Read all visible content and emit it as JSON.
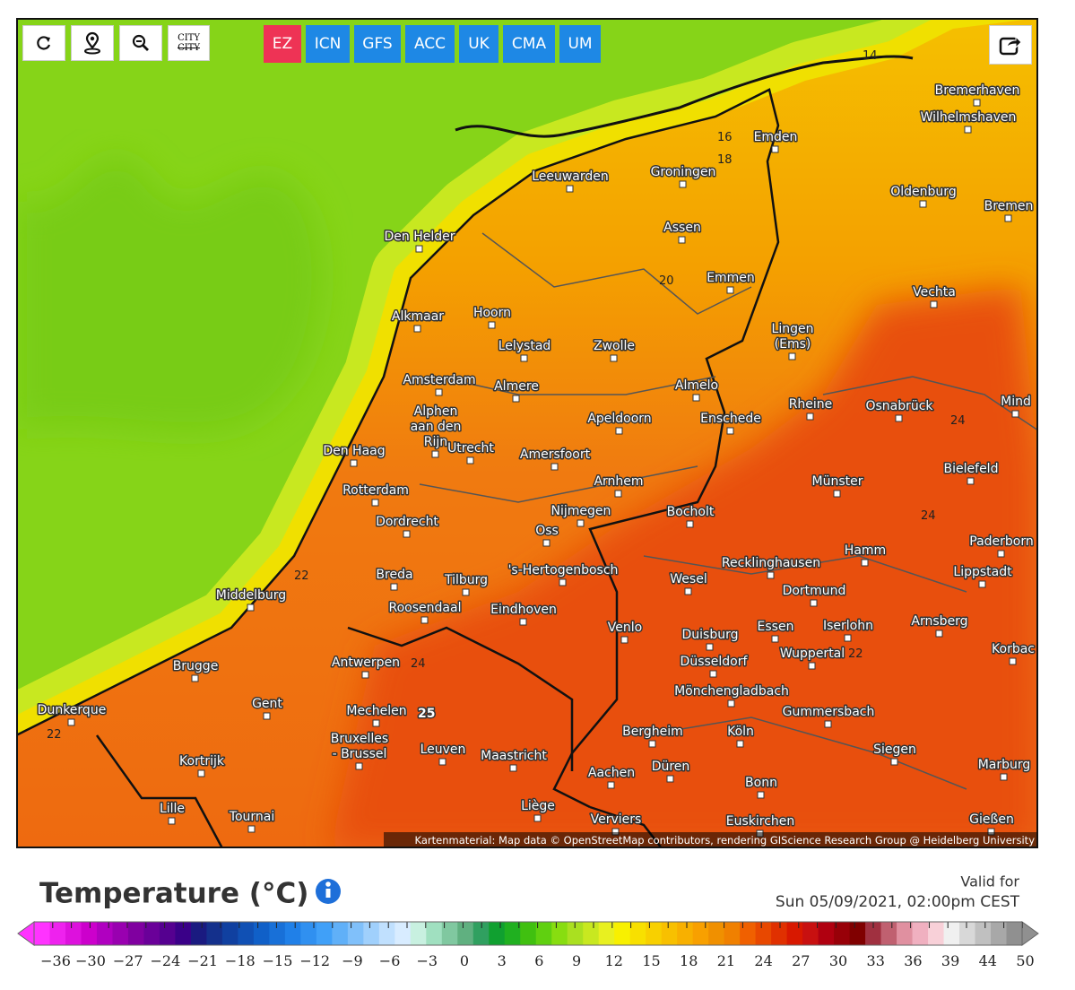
{
  "toolbar": {
    "city_button": [
      "CITY",
      "CITY"
    ]
  },
  "models": [
    "EZ",
    "ICN",
    "GFS",
    "ACC",
    "UK",
    "CMA",
    "UM"
  ],
  "map": {
    "cities": [
      "Bremerhaven",
      "Wilhelmshaven",
      "Emden",
      "Groningen",
      "Leeuwarden",
      "Oldenburg",
      "Bremen",
      "Assen",
      "Den Helder",
      "Emmen",
      "Vechta",
      "Alkmaar",
      "Hoorn",
      [
        "Lingen",
        "(Ems)"
      ],
      "Lelystad",
      "Zwolle",
      "Amsterdam",
      "Almere",
      "Almelo",
      "Rheine",
      "Osnabrück",
      "Mind",
      [
        "Alphen",
        "aan den",
        "Rijn"
      ],
      "Apeldoorn",
      "Enschede",
      "Den Haag",
      "Utrecht",
      "Amersfoort",
      "Bielefeld",
      "Arnhem",
      "Münster",
      "Rotterdam",
      "Nijmegen",
      "Bocholt",
      "Dordrecht",
      "Oss",
      "Paderborn",
      "Hamm",
      "'s-Hertogenbosch",
      "Recklinghausen",
      "Breda",
      "Tilburg",
      "Wesel",
      "Lippstadt",
      "Dortmund",
      "Middelburg",
      "Roosendaal",
      "Eindhoven",
      "Arnsberg",
      "Essen",
      "Iserlohn",
      "Venlo",
      "Duisburg",
      "Wuppertal",
      "Korbac",
      "Brugge",
      "Antwerpen",
      "Düsseldorf",
      "Mönchengladbach",
      "Gummersbach",
      "Dunkerque",
      "Gent",
      "Mechelen",
      "Bergheim",
      "Köln",
      "Siegen",
      [
        "Bruxelles",
        "- Brussel"
      ],
      "Leuven",
      "Maastricht",
      "Kortrijk",
      "Marburg",
      "Düren",
      "Aachen",
      "Bonn",
      "Liège",
      "Lille",
      "Tournai",
      "Verviers",
      "Euskirchen",
      "Gießen"
    ],
    "contour_labels": [
      "14",
      "16",
      "18",
      "20",
      "22",
      "22",
      "24",
      "24",
      "24",
      "22",
      "25"
    ],
    "attribution": "Kartenmaterial: Map data © OpenStreetMap contributors, rendering GIScience Research Group @ Heidelberg University"
  },
  "legend": {
    "title": "Temperature (°C)",
    "valid_label": "Valid for",
    "valid_time": "Sun 05/09/2021, 02:00pm CEST",
    "colors": [
      "#ff33ff",
      "#ee22ee",
      "#dd11dd",
      "#cc00cc",
      "#b000c0",
      "#9900b0",
      "#8000a0",
      "#6a0099",
      "#550090",
      "#3a0088",
      "#1a1a80",
      "#14308c",
      "#1040a0",
      "#1050b4",
      "#1060c8",
      "#1870d8",
      "#2080e8",
      "#3090f0",
      "#40a0f8",
      "#60b0f8",
      "#80c0fa",
      "#a0d0fc",
      "#c0e0fe",
      "#d8ecff",
      "#c8f0e0",
      "#a0e0c0",
      "#80c8a0",
      "#60b080",
      "#30a060",
      "#10a030",
      "#20b020",
      "#40c010",
      "#60d010",
      "#88dd10",
      "#aae020",
      "#c8e820",
      "#e8f020",
      "#f8f000",
      "#f8e000",
      "#f8d000",
      "#f8c000",
      "#f8b000",
      "#f8a000",
      "#f09000",
      "#f08000",
      "#f06000",
      "#e84800",
      "#e03000",
      "#d81800",
      "#c81010",
      "#b00010",
      "#980008",
      "#800000",
      "#a03040",
      "#c06070",
      "#e090a0",
      "#f0b0c0",
      "#f8d0d8",
      "#f0f0f0",
      "#d8d8d8",
      "#c0c0c0",
      "#a8a8a8",
      "#909090"
    ],
    "ticks": [
      "−36",
      "−30",
      "−27",
      "−24",
      "−21",
      "−18",
      "−15",
      "−12",
      "−9",
      "−6",
      "−3",
      "0",
      "3",
      "6",
      "9",
      "12",
      "15",
      "18",
      "21",
      "24",
      "27",
      "30",
      "33",
      "36",
      "39",
      "44",
      "50"
    ]
  }
}
